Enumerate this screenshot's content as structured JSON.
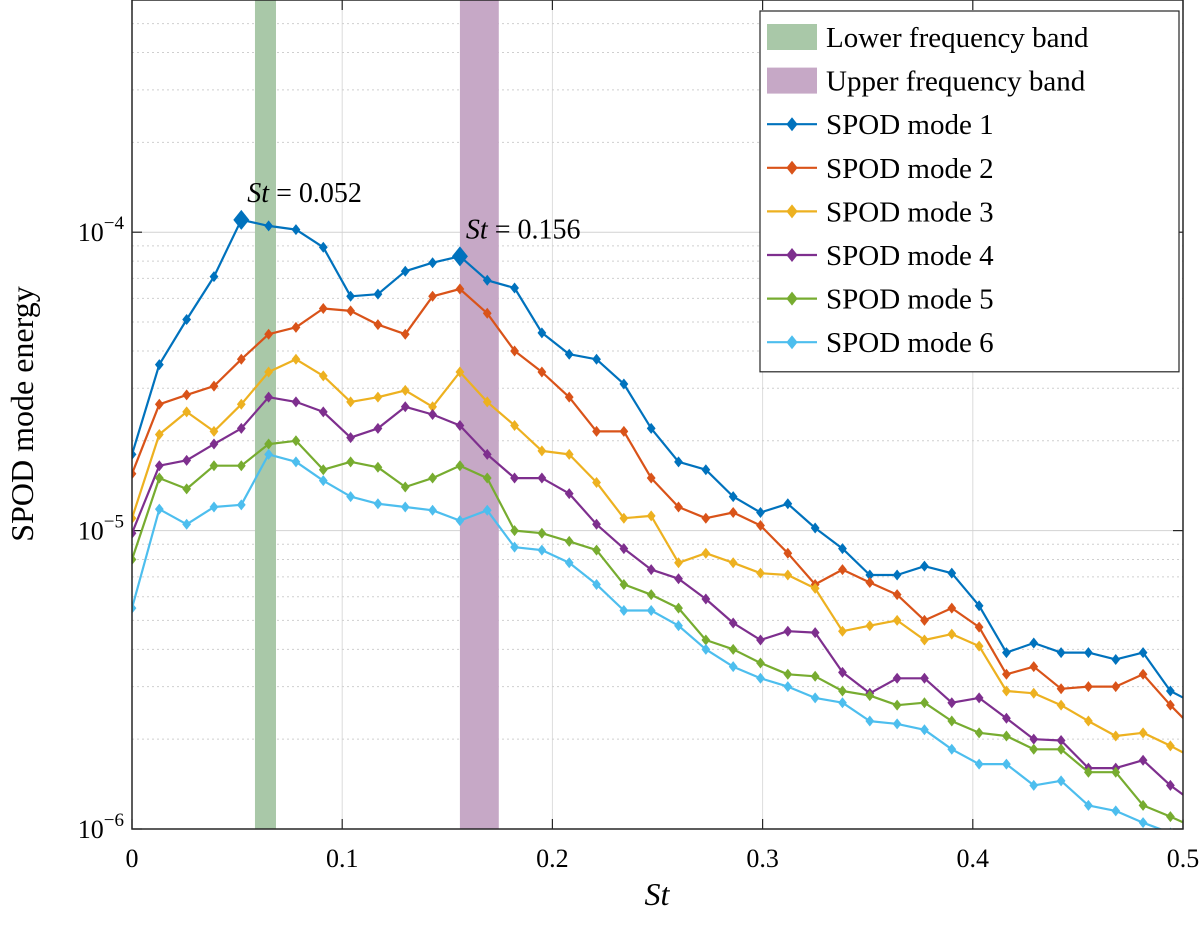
{
  "chart_data": {
    "type": "line",
    "ylabel": "SPOD mode energy",
    "xlabel": "St",
    "xlim": [
      0,
      0.5
    ],
    "ylim": [
      1e-06,
      0.0006
    ],
    "yscale": "log",
    "grid": true,
    "legend_position": "top-right",
    "x_ticks": [
      "0",
      "0.1",
      "0.2",
      "0.3",
      "0.4",
      "0.5"
    ],
    "y_ticks": [
      {
        "base": "10",
        "exp": "−6"
      },
      {
        "base": "10",
        "exp": "−5"
      },
      {
        "base": "10",
        "exp": "−4"
      }
    ],
    "bands": [
      {
        "name": "Lower frequency band",
        "x0": 0.0585,
        "x1": 0.0685,
        "color": "#a9c8a8"
      },
      {
        "name": "Upper frequency band",
        "x0": 0.156,
        "x1": 0.1745,
        "color": "#c6a8c6"
      }
    ],
    "annotations": [
      {
        "label_var": "St",
        "label_value": " = 0.052",
        "x": 0.052,
        "series_index": 0
      },
      {
        "label_var": "St",
        "label_value": " = 0.156",
        "x": 0.156,
        "series_index": 0
      }
    ],
    "x": [
      0,
      0.013,
      0.026,
      0.039,
      0.052,
      0.065,
      0.078,
      0.091,
      0.104,
      0.117,
      0.13,
      0.143,
      0.156,
      0.169,
      0.182,
      0.195,
      0.208,
      0.221,
      0.234,
      0.247,
      0.26,
      0.273,
      0.286,
      0.299,
      0.312,
      0.325,
      0.338,
      0.351,
      0.364,
      0.377,
      0.39,
      0.403,
      0.416,
      0.429,
      0.442,
      0.455,
      0.468,
      0.481,
      0.494,
      0.507
    ],
    "series": [
      {
        "name": "SPOD mode 1",
        "color": "#0072bd",
        "values": [
          1.8e-05,
          3.6e-05,
          5.1e-05,
          7.1e-05,
          0.00011,
          0.000105,
          0.000102,
          8.9e-05,
          6.1e-05,
          6.2e-05,
          7.4e-05,
          7.9e-05,
          8.3e-05,
          6.9e-05,
          6.5e-05,
          4.6e-05,
          3.9e-05,
          3.75e-05,
          3.1e-05,
          2.2e-05,
          1.7e-05,
          1.6e-05,
          1.3e-05,
          1.15e-05,
          1.23e-05,
          1.02e-05,
          8.7e-06,
          7.1e-06,
          7.1e-06,
          7.6e-06,
          7.2e-06,
          5.6e-06,
          3.9e-06,
          4.2e-06,
          3.9e-06,
          3.9e-06,
          3.7e-06,
          3.9e-06,
          2.9e-06,
          2.6e-06
        ]
      },
      {
        "name": "SPOD mode 2",
        "color": "#d95319",
        "values": [
          1.55e-05,
          2.65e-05,
          2.85e-05,
          3.05e-05,
          3.75e-05,
          4.55e-05,
          4.8e-05,
          5.55e-05,
          5.45e-05,
          4.9e-05,
          4.55e-05,
          6.1e-05,
          6.45e-05,
          5.35e-05,
          4e-05,
          3.4e-05,
          2.8e-05,
          2.15e-05,
          2.15e-05,
          1.5e-05,
          1.2e-05,
          1.1e-05,
          1.15e-05,
          1.04e-05,
          8.4e-06,
          6.6e-06,
          7.4e-06,
          6.7e-06,
          6.1e-06,
          5e-06,
          5.5e-06,
          4.75e-06,
          3.3e-06,
          3.5e-06,
          2.95e-06,
          3e-06,
          3e-06,
          3.3e-06,
          2.6e-06,
          2.1e-06
        ]
      },
      {
        "name": "SPOD mode 3",
        "color": "#edb120",
        "values": [
          1.1e-05,
          2.1e-05,
          2.5e-05,
          2.15e-05,
          2.65e-05,
          3.4e-05,
          3.75e-05,
          3.3e-05,
          2.7e-05,
          2.8e-05,
          2.95e-05,
          2.6e-05,
          3.4e-05,
          2.7e-05,
          2.25e-05,
          1.85e-05,
          1.8e-05,
          1.45e-05,
          1.1e-05,
          1.12e-05,
          7.8e-06,
          8.4e-06,
          7.8e-06,
          7.2e-06,
          7.1e-06,
          6.4e-06,
          4.6e-06,
          4.8e-06,
          5e-06,
          4.3e-06,
          4.5e-06,
          4.1e-06,
          2.9e-06,
          2.85e-06,
          2.6e-06,
          2.3e-06,
          2.05e-06,
          2.1e-06,
          1.9e-06,
          1.7e-06
        ]
      },
      {
        "name": "SPOD mode 4",
        "color": "#7e2f8e",
        "values": [
          9.8e-06,
          1.65e-05,
          1.72e-05,
          1.95e-05,
          2.2e-05,
          2.8e-05,
          2.7e-05,
          2.5e-05,
          2.05e-05,
          2.2e-05,
          2.6e-05,
          2.45e-05,
          2.25e-05,
          1.8e-05,
          1.5e-05,
          1.5e-05,
          1.33e-05,
          1.05e-05,
          8.7e-06,
          7.4e-06,
          6.9e-06,
          5.9e-06,
          4.9e-06,
          4.3e-06,
          4.6e-06,
          4.55e-06,
          3.35e-06,
          2.85e-06,
          3.2e-06,
          3.2e-06,
          2.65e-06,
          2.75e-06,
          2.35e-06,
          2e-06,
          1.98e-06,
          1.6e-06,
          1.6e-06,
          1.7e-06,
          1.4e-06,
          1.2e-06
        ]
      },
      {
        "name": "SPOD mode 5",
        "color": "#77ac30",
        "values": [
          8e-06,
          1.5e-05,
          1.38e-05,
          1.65e-05,
          1.65e-05,
          1.95e-05,
          2e-05,
          1.6e-05,
          1.7e-05,
          1.63e-05,
          1.4e-05,
          1.5e-05,
          1.65e-05,
          1.5e-05,
          1e-05,
          9.8e-06,
          9.2e-06,
          8.6e-06,
          6.6e-06,
          6.1e-06,
          5.5e-06,
          4.3e-06,
          4e-06,
          3.6e-06,
          3.3e-06,
          3.25e-06,
          2.9e-06,
          2.8e-06,
          2.6e-06,
          2.65e-06,
          2.3e-06,
          2.1e-06,
          2.05e-06,
          1.85e-06,
          1.85e-06,
          1.55e-06,
          1.55e-06,
          1.2e-06,
          1.1e-06,
          1e-06
        ]
      },
      {
        "name": "SPOD mode 6",
        "color": "#4dbeee",
        "values": [
          5.5e-06,
          1.18e-05,
          1.05e-05,
          1.2e-05,
          1.22e-05,
          1.8e-05,
          1.7e-05,
          1.47e-05,
          1.3e-05,
          1.23e-05,
          1.2e-05,
          1.17e-05,
          1.08e-05,
          1.17e-05,
          8.8e-06,
          8.6e-06,
          7.8e-06,
          6.6e-06,
          5.4e-06,
          5.4e-06,
          4.8e-06,
          4e-06,
          3.5e-06,
          3.2e-06,
          3e-06,
          2.75e-06,
          2.65e-06,
          2.3e-06,
          2.25e-06,
          2.15e-06,
          1.85e-06,
          1.65e-06,
          1.65e-06,
          1.4e-06,
          1.45e-06,
          1.2e-06,
          1.15e-06,
          1.05e-06,
          9.7e-07,
          9e-07
        ]
      }
    ]
  }
}
